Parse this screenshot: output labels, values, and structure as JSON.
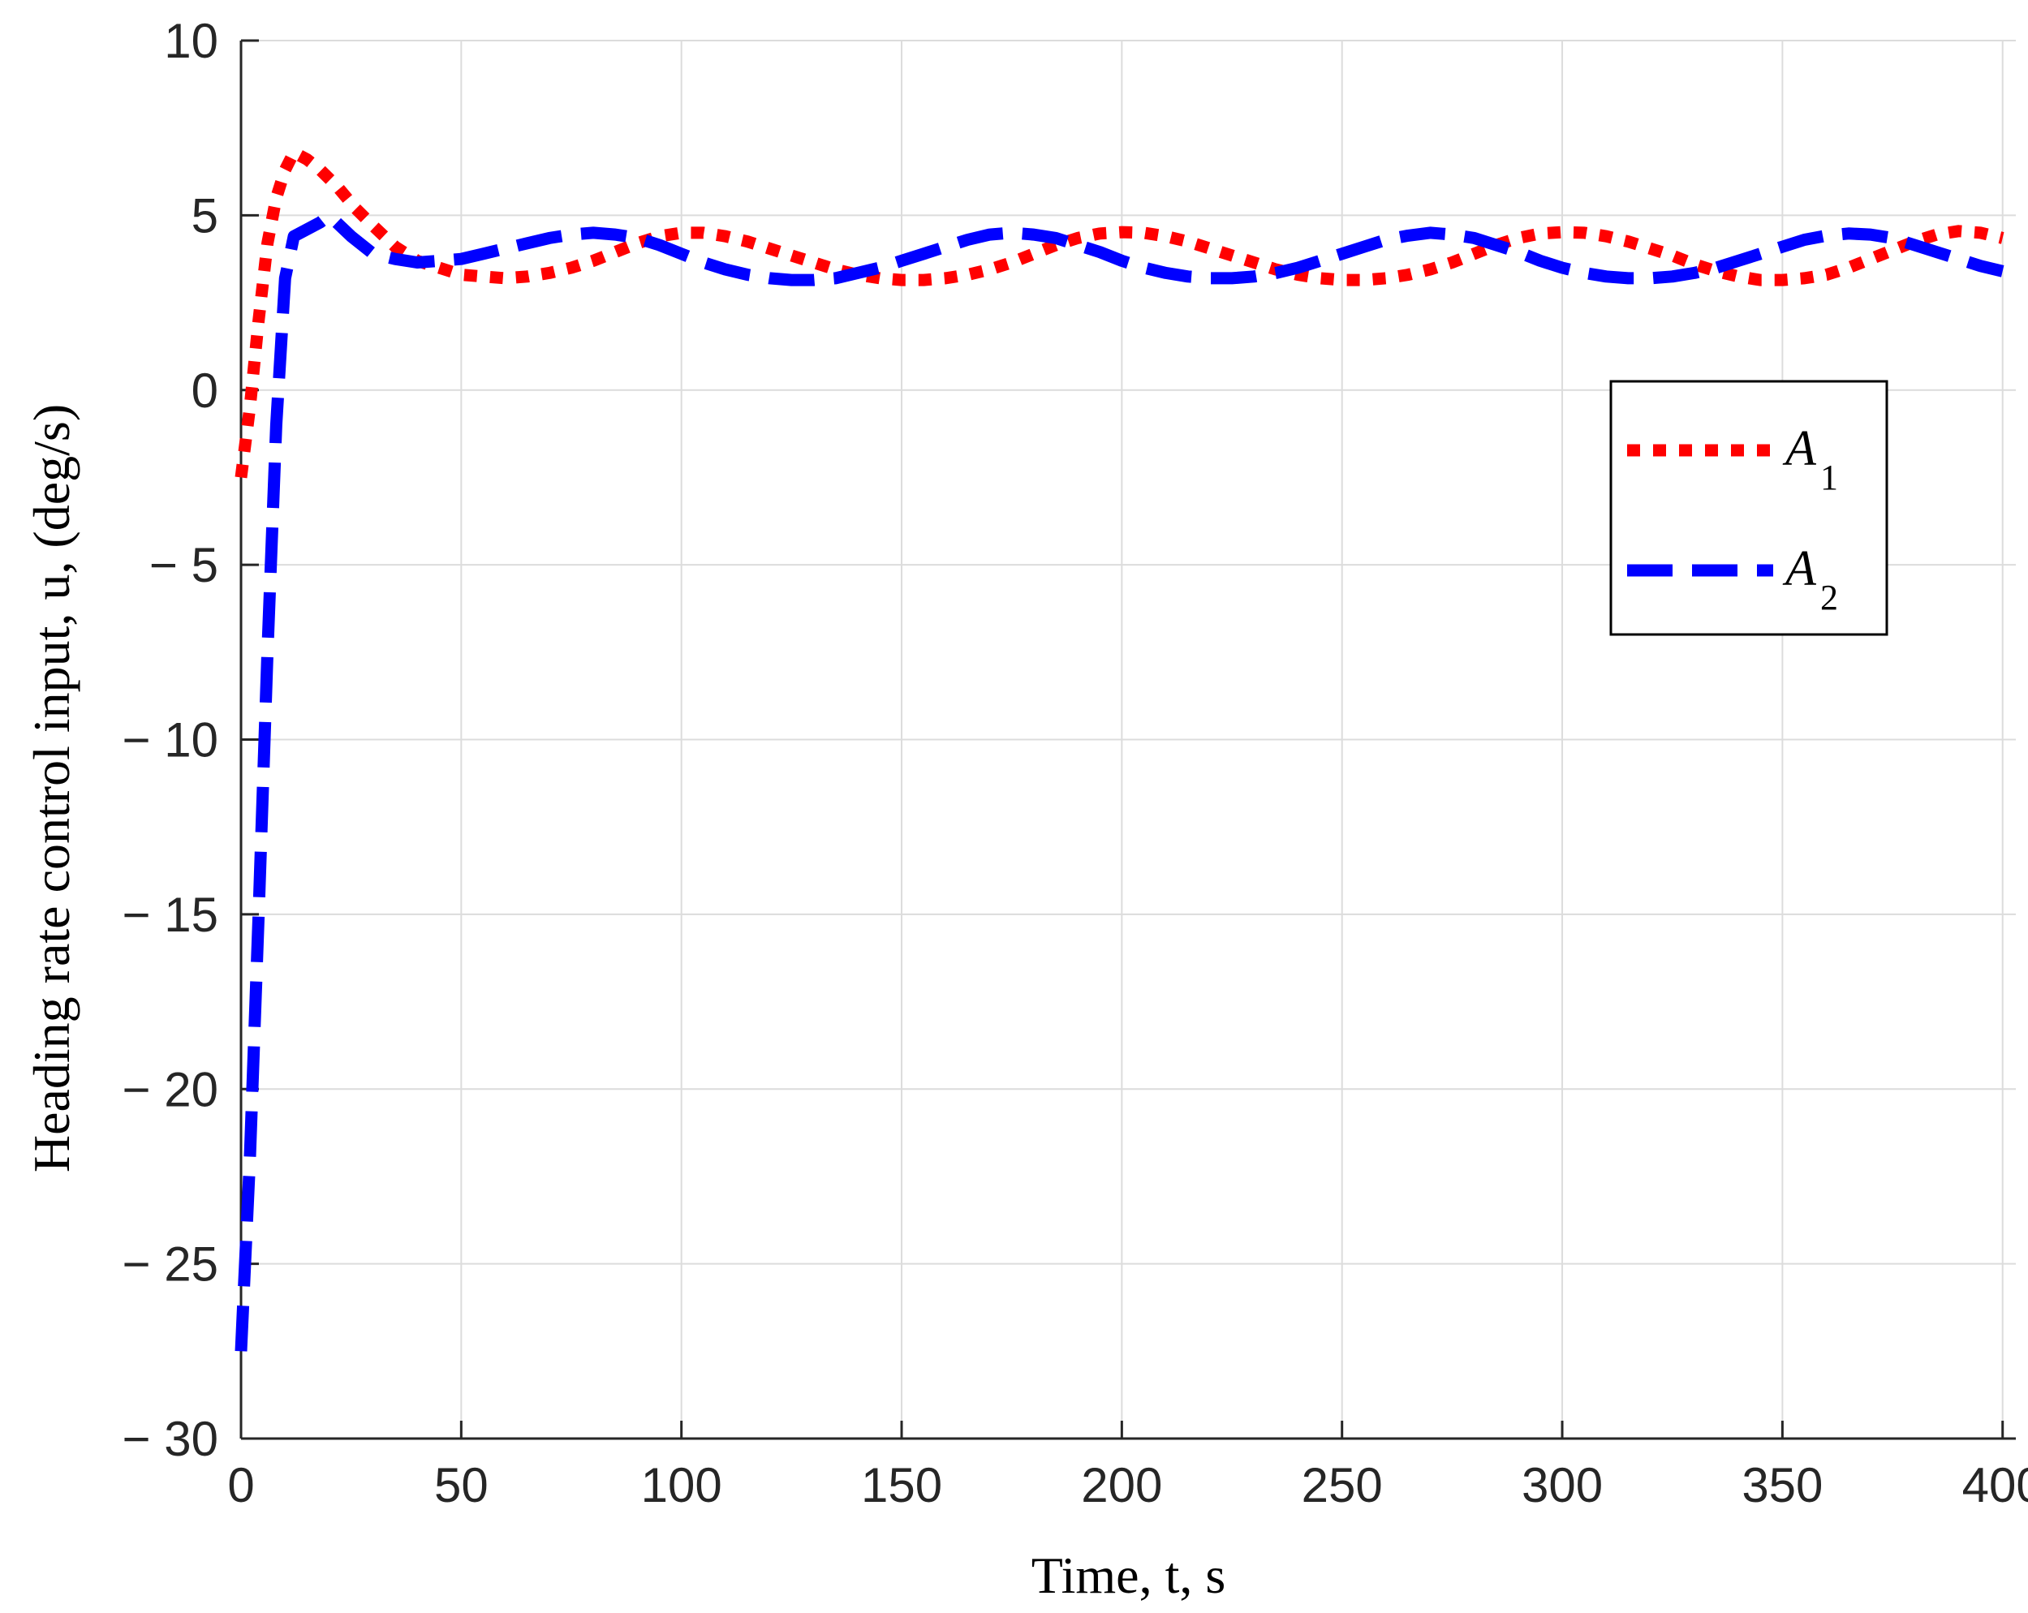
{
  "chart_data": {
    "type": "line",
    "xlabel": "Time, t, s",
    "ylabel": "Heading rate control input,  u, (deg/s)",
    "xlim": [
      0,
      403
    ],
    "ylim": [
      -30,
      10
    ],
    "xticks": [
      0,
      50,
      100,
      150,
      200,
      250,
      300,
      350,
      400
    ],
    "yticks": [
      10,
      5,
      0,
      -5,
      -10,
      -15,
      -20,
      -25,
      -30
    ],
    "xtick_labels": [
      "0",
      "50",
      "100",
      "150",
      "200",
      "250",
      "300",
      "350",
      "400"
    ],
    "ytick_labels": [
      "10",
      "5",
      "0",
      "− 5",
      "− 10",
      "− 15",
      "− 20",
      "− 25",
      "− 30"
    ],
    "grid": true,
    "legend_position": "right",
    "series": [
      {
        "name": "A",
        "subscript": "1",
        "color": "#ff0000",
        "style": "dotted",
        "x": [
          0,
          2,
          4,
          6,
          8,
          10,
          12,
          15,
          18,
          22,
          26,
          30,
          35,
          40,
          45,
          50,
          55,
          60,
          65,
          70,
          75,
          80,
          85,
          90,
          95,
          100,
          105,
          110,
          115,
          120,
          125,
          130,
          135,
          140,
          145,
          150,
          155,
          160,
          165,
          170,
          175,
          180,
          185,
          190,
          195,
          200,
          205,
          210,
          215,
          220,
          225,
          230,
          235,
          240,
          245,
          250,
          255,
          260,
          265,
          270,
          275,
          280,
          285,
          290,
          295,
          300,
          305,
          310,
          315,
          320,
          325,
          330,
          335,
          340,
          345,
          350,
          355,
          360,
          365,
          370,
          375,
          380,
          385,
          390,
          395,
          400
        ],
        "y": [
          -2.5,
          -0.5,
          2.0,
          4.2,
          5.5,
          6.3,
          6.8,
          6.6,
          6.3,
          5.8,
          5.2,
          4.7,
          4.1,
          3.7,
          3.5,
          3.3,
          3.25,
          3.2,
          3.25,
          3.35,
          3.5,
          3.7,
          3.95,
          4.2,
          4.4,
          4.5,
          4.5,
          4.4,
          4.25,
          4.05,
          3.85,
          3.65,
          3.45,
          3.3,
          3.2,
          3.15,
          3.15,
          3.2,
          3.3,
          3.45,
          3.65,
          3.9,
          4.15,
          4.35,
          4.48,
          4.52,
          4.5,
          4.4,
          4.25,
          4.05,
          3.85,
          3.65,
          3.45,
          3.3,
          3.2,
          3.15,
          3.15,
          3.2,
          3.3,
          3.45,
          3.65,
          3.9,
          4.15,
          4.35,
          4.48,
          4.52,
          4.5,
          4.4,
          4.25,
          4.05,
          3.85,
          3.6,
          3.4,
          3.25,
          3.15,
          3.15,
          3.2,
          3.3,
          3.5,
          3.75,
          4.0,
          4.25,
          4.45,
          4.55,
          4.5,
          4.35
        ]
      },
      {
        "name": "A",
        "subscript": "2",
        "color": "#0000ff",
        "style": "dashed",
        "x": [
          0,
          2,
          4,
          6,
          8,
          10,
          12,
          15,
          18,
          20,
          25,
          30,
          35,
          40,
          45,
          50,
          55,
          60,
          65,
          70,
          75,
          80,
          85,
          90,
          95,
          100,
          105,
          110,
          115,
          120,
          125,
          130,
          135,
          140,
          145,
          150,
          155,
          160,
          165,
          170,
          175,
          180,
          185,
          190,
          195,
          200,
          205,
          210,
          215,
          220,
          225,
          230,
          235,
          240,
          245,
          250,
          255,
          260,
          265,
          270,
          275,
          280,
          285,
          290,
          295,
          300,
          305,
          310,
          315,
          320,
          325,
          330,
          335,
          340,
          345,
          350,
          355,
          360,
          365,
          370,
          375,
          380,
          385,
          390,
          395,
          400
        ],
        "y": [
          -27.5,
          -22.0,
          -15.0,
          -7.5,
          -1.0,
          3.2,
          4.4,
          4.6,
          4.8,
          5.0,
          4.4,
          3.9,
          3.75,
          3.65,
          3.7,
          3.75,
          3.9,
          4.05,
          4.2,
          4.35,
          4.45,
          4.5,
          4.45,
          4.35,
          4.15,
          3.9,
          3.65,
          3.45,
          3.3,
          3.2,
          3.15,
          3.15,
          3.2,
          3.35,
          3.5,
          3.7,
          3.9,
          4.1,
          4.3,
          4.45,
          4.5,
          4.45,
          4.35,
          4.15,
          3.95,
          3.7,
          3.5,
          3.35,
          3.25,
          3.2,
          3.2,
          3.25,
          3.35,
          3.5,
          3.7,
          3.9,
          4.1,
          4.3,
          4.42,
          4.5,
          4.45,
          4.35,
          4.15,
          3.95,
          3.7,
          3.5,
          3.35,
          3.25,
          3.2,
          3.2,
          3.25,
          3.35,
          3.5,
          3.7,
          3.9,
          4.1,
          4.3,
          4.42,
          4.48,
          4.45,
          4.35,
          4.15,
          3.95,
          3.75,
          3.55,
          3.4
        ]
      }
    ]
  }
}
